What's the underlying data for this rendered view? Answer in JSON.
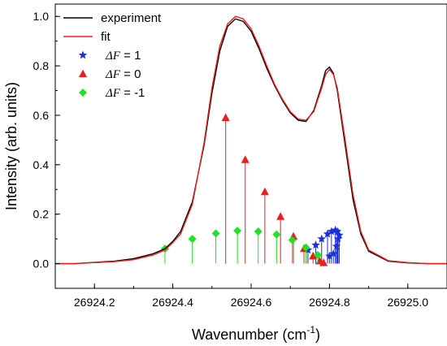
{
  "chart_data": {
    "type": "line",
    "xlabel": "Wavenumber (cm",
    "xlabel_sup": "-1",
    "xlabel_end": ")",
    "ylabel": "Intensity (arb. units)",
    "xlim": [
      26924.1,
      26925.1
    ],
    "ylim": [
      -0.1,
      1.05
    ],
    "xticks": [
      26924.2,
      26924.4,
      26924.6,
      26924.8,
      26925.0
    ],
    "xtick_labels": [
      "26924.2",
      "26924.4",
      "26924.6",
      "26924.8",
      "26925.0"
    ],
    "yticks": [
      0.0,
      0.2,
      0.4,
      0.6,
      0.8,
      1.0
    ],
    "ytick_labels": [
      "0.0",
      "0.2",
      "0.4",
      "0.6",
      "0.8",
      "1.0"
    ],
    "grid": false,
    "legend_position": "top-left",
    "series": [
      {
        "name": "experiment",
        "kind": "line",
        "color": "#000000",
        "x": [
          26924.1,
          26924.15,
          26924.2,
          26924.25,
          26924.3,
          26924.35,
          26924.38,
          26924.4,
          26924.42,
          26924.45,
          26924.48,
          26924.5,
          26924.52,
          26924.54,
          26924.56,
          26924.58,
          26924.6,
          26924.62,
          26924.64,
          26924.66,
          26924.68,
          26924.7,
          26924.72,
          26924.74,
          26924.76,
          26924.78,
          26924.79,
          26924.8,
          26924.81,
          26924.82,
          26924.84,
          26924.86,
          26924.88,
          26924.9,
          26924.95,
          26925.0,
          26925.05,
          26925.1
        ],
        "y": [
          0.0,
          0.0,
          0.005,
          0.01,
          0.02,
          0.04,
          0.06,
          0.09,
          0.13,
          0.25,
          0.48,
          0.69,
          0.86,
          0.96,
          0.99,
          0.98,
          0.94,
          0.87,
          0.79,
          0.72,
          0.66,
          0.61,
          0.58,
          0.575,
          0.62,
          0.72,
          0.78,
          0.795,
          0.77,
          0.7,
          0.48,
          0.26,
          0.12,
          0.05,
          0.01,
          0.003,
          0.0,
          0.0
        ]
      },
      {
        "name": "fit",
        "kind": "line",
        "color": "#e8201a",
        "x": [
          26924.1,
          26924.15,
          26924.2,
          26924.25,
          26924.3,
          26924.35,
          26924.38,
          26924.4,
          26924.42,
          26924.45,
          26924.48,
          26924.5,
          26924.52,
          26924.54,
          26924.56,
          26924.58,
          26924.6,
          26924.62,
          26924.64,
          26924.66,
          26924.68,
          26924.7,
          26924.72,
          26924.74,
          26924.76,
          26924.78,
          26924.79,
          26924.8,
          26924.81,
          26924.82,
          26924.84,
          26924.86,
          26924.88,
          26924.9,
          26924.95,
          26925.0,
          26925.05,
          26925.1
        ],
        "y": [
          0.0,
          0.0,
          0.004,
          0.008,
          0.016,
          0.035,
          0.055,
          0.085,
          0.12,
          0.24,
          0.49,
          0.71,
          0.88,
          0.97,
          1.0,
          0.99,
          0.95,
          0.88,
          0.8,
          0.725,
          0.665,
          0.615,
          0.585,
          0.58,
          0.615,
          0.71,
          0.765,
          0.785,
          0.765,
          0.71,
          0.5,
          0.28,
          0.13,
          0.055,
          0.012,
          0.004,
          0.0,
          0.0
        ]
      },
      {
        "name": "ΔF = 1",
        "legend_var": "ΔF",
        "legend_value": " = 1",
        "kind": "stem",
        "marker": "star",
        "color": "#1f2fd6",
        "x": [
          26924.745,
          26924.765,
          26924.78,
          26924.795,
          26924.8,
          26924.805,
          26924.81,
          26924.815,
          26924.818,
          26924.82,
          26924.822,
          26924.825
        ],
        "y": [
          0.055,
          0.075,
          0.1,
          0.12,
          0.03,
          0.13,
          0.04,
          0.135,
          0.07,
          0.13,
          0.1,
          0.115
        ]
      },
      {
        "name": "ΔF = 0",
        "legend_var": "ΔF",
        "legend_value": " = 0",
        "kind": "stem",
        "marker": "triangle",
        "color": "#e8201a",
        "x": [
          26924.535,
          26924.585,
          26924.635,
          26924.675,
          26924.708,
          26924.735,
          26924.758,
          26924.775,
          26924.785
        ],
        "y": [
          0.59,
          0.42,
          0.29,
          0.19,
          0.11,
          0.06,
          0.03,
          0.01,
          0.003
        ]
      },
      {
        "name": "ΔF = -1",
        "legend_var": "ΔF",
        "legend_value": " = -1",
        "kind": "stem",
        "marker": "diamond",
        "color": "#22e022",
        "x": [
          26924.38,
          26924.45,
          26924.51,
          26924.565,
          26924.618,
          26924.665,
          26924.705,
          26924.74,
          26924.77
        ],
        "y": [
          0.06,
          0.1,
          0.122,
          0.133,
          0.13,
          0.118,
          0.095,
          0.065,
          0.035
        ]
      }
    ]
  }
}
